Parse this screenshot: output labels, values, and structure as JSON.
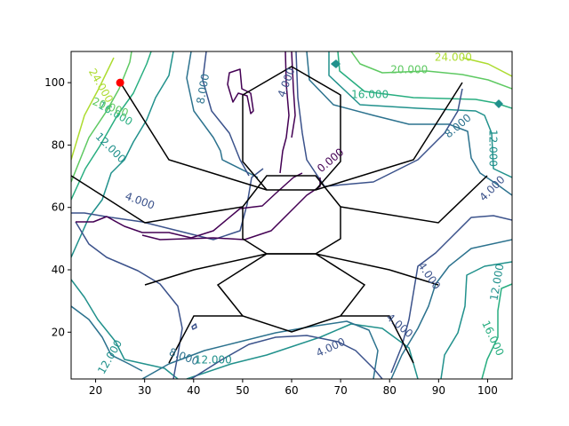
{
  "chart_data": {
    "type": "contour",
    "title": "",
    "xlabel": "",
    "ylabel": "",
    "xlim": [
      15,
      105
    ],
    "ylim": [
      5,
      110
    ],
    "grid": false,
    "x_ticks": [
      20,
      30,
      40,
      50,
      60,
      70,
      80,
      90,
      100
    ],
    "y_ticks": [
      20,
      40,
      60,
      80,
      100
    ],
    "x_tick_labels": [
      "20",
      "30",
      "40",
      "50",
      "60",
      "70",
      "80",
      "90",
      "100"
    ],
    "y_tick_labels": [
      "20",
      "40",
      "60",
      "80",
      "100"
    ],
    "colors": {
      "level_0": "#440154",
      "level_4": "#3b528b",
      "level_8": "#2c728e",
      "level_12": "#21918c",
      "level_16": "#28ae80",
      "level_20": "#5ec962",
      "level_24": "#addc30",
      "skeleton": "#000000",
      "marker": "#ff0000"
    },
    "marker": {
      "x": 25,
      "y": 100
    },
    "contour_labels": [
      {
        "text": "0.000",
        "level": 0,
        "x": 68,
        "y": 75,
        "rot": 40
      },
      {
        "text": "4.000",
        "level": 4,
        "x": 59,
        "y": 100,
        "rot": 70
      },
      {
        "text": "4.000",
        "level": 4,
        "x": 29,
        "y": 62,
        "rot": -20
      },
      {
        "text": "4.000",
        "level": 4,
        "x": 101,
        "y": 66,
        "rot": 45
      },
      {
        "text": "4.000",
        "level": 4,
        "x": 88,
        "y": 38,
        "rot": -55
      },
      {
        "text": "4.000",
        "level": 4,
        "x": 82,
        "y": 22,
        "rot": -40
      },
      {
        "text": "4.000",
        "level": 4,
        "x": 68,
        "y": 15,
        "rot": 25
      },
      {
        "text": "8.000",
        "level": 8,
        "x": 42,
        "y": 98,
        "rot": 80
      },
      {
        "text": "8.000",
        "level": 8,
        "x": 94,
        "y": 86,
        "rot": 40
      },
      {
        "text": "8.000",
        "level": 8,
        "x": 38,
        "y": 12,
        "rot": -20
      },
      {
        "text": "12.000",
        "level": 12,
        "x": 23,
        "y": 79,
        "rot": -45
      },
      {
        "text": "12.000",
        "level": 12,
        "x": 101,
        "y": 79,
        "rot": -90
      },
      {
        "text": "12.000",
        "level": 12,
        "x": 102,
        "y": 36,
        "rot": 80
      },
      {
        "text": "12.000",
        "level": 12,
        "x": 44,
        "y": 11,
        "rot": 0
      },
      {
        "text": "12.000",
        "level": 12,
        "x": 23,
        "y": 12,
        "rot": 60
      },
      {
        "text": "16.000",
        "level": 16,
        "x": 24,
        "y": 90,
        "rot": -30
      },
      {
        "text": "16.000",
        "level": 16,
        "x": 76,
        "y": 96,
        "rot": 0
      },
      {
        "text": "16.000",
        "level": 16,
        "x": 101,
        "y": 18,
        "rot": -65
      },
      {
        "text": "20.000",
        "level": 20,
        "x": 23,
        "y": 92,
        "rot": -20
      },
      {
        "text": "20.000",
        "level": 20,
        "x": 84,
        "y": 104,
        "rot": 0
      },
      {
        "text": "24.000",
        "level": 24,
        "x": 21,
        "y": 99,
        "rot": -60
      },
      {
        "text": "24.000",
        "level": 24,
        "x": 93,
        "y": 108,
        "rot": 0
      }
    ]
  }
}
